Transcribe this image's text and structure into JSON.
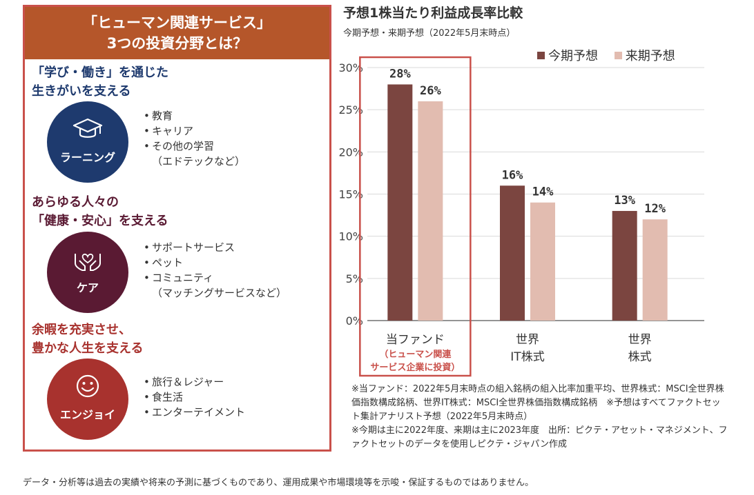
{
  "panel": {
    "header_line1": "「ヒューマン関連サービス」",
    "header_line2": "3つの投資分野とは？",
    "sections": [
      {
        "heading_line1": "「学び・働き」を通じた",
        "heading_line2": "生きがいを支える",
        "circle_label": "ラーニング",
        "icon": "graduation-cap-icon",
        "color": "#1e3a6e",
        "items": [
          "教育",
          "キャリア",
          "その他の学習"
        ],
        "item_note": "（エドテックなど）"
      },
      {
        "heading_line1": "あらゆる人々の",
        "heading_line2": "「健康・安心」を支える",
        "circle_label": "ケア",
        "icon": "hands-heart-icon",
        "color": "#5a1a33",
        "items": [
          "サポートサービス",
          "ペット",
          "コミュニティ"
        ],
        "item_note": "（マッチングサービスなど）"
      },
      {
        "heading_line1": "余暇を充実させ、",
        "heading_line2": "豊かな人生を支える",
        "circle_label": "エンジョイ",
        "icon": "smiley-face-icon",
        "color": "#a8322e",
        "items": [
          "旅行＆レジャー",
          "食生活",
          "エンターテイメント"
        ],
        "item_note": ""
      }
    ]
  },
  "chart_data": {
    "type": "bar",
    "title": "予想1株当たり利益成長率比較",
    "subtitle": "今期予想・来期予想（2022年5月末時点）",
    "categories": [
      {
        "line1": "当ファンド",
        "note_line1": "（ヒューマン関連",
        "note_line2": "サービス企業に投資）"
      },
      {
        "line1": "世界",
        "line2": "IT株式"
      },
      {
        "line1": "世界",
        "line2": "株式"
      }
    ],
    "series": [
      {
        "name": "今期予想",
        "values": [
          28,
          16,
          13
        ],
        "labels": [
          "28%",
          "16%",
          "13%"
        ],
        "color": "#7b4540"
      },
      {
        "name": "来期予想",
        "values": [
          26,
          14,
          12
        ],
        "labels": [
          "26%",
          "14%",
          "12%"
        ],
        "color": "#e2bcb0"
      }
    ],
    "ylim": [
      0,
      30
    ],
    "yticks": [
      0,
      5,
      10,
      15,
      20,
      25,
      30
    ],
    "ytick_labels": [
      "0%",
      "5%",
      "10%",
      "15%",
      "20%",
      "25%",
      "30%"
    ],
    "legend_position": "top-right",
    "highlight_category": 0,
    "highlight_color": "#c9504a",
    "grid": true
  },
  "notes": [
    "※当ファンド：2022年5月末時点の組入銘柄の組入比率加重平均、世界株式：MSCI全世界株価指数構成銘柄、世界IT株式：MSCI全世界株価指数構成銘柄　※予想はすべてファクトセット集計アナリスト予想（2022年5月末時点）",
    "※今期は主に2022年度、来期は主に2023年度　出所：ピクテ・アセット・マネジメント、ファクトセットのデータを使用しピクテ・ジャパン作成"
  ],
  "disclaimer": "データ・分析等は過去の実績や将来の予測に基づくものであり、運用成果や市場環境等を示唆・保証するものではありません。"
}
